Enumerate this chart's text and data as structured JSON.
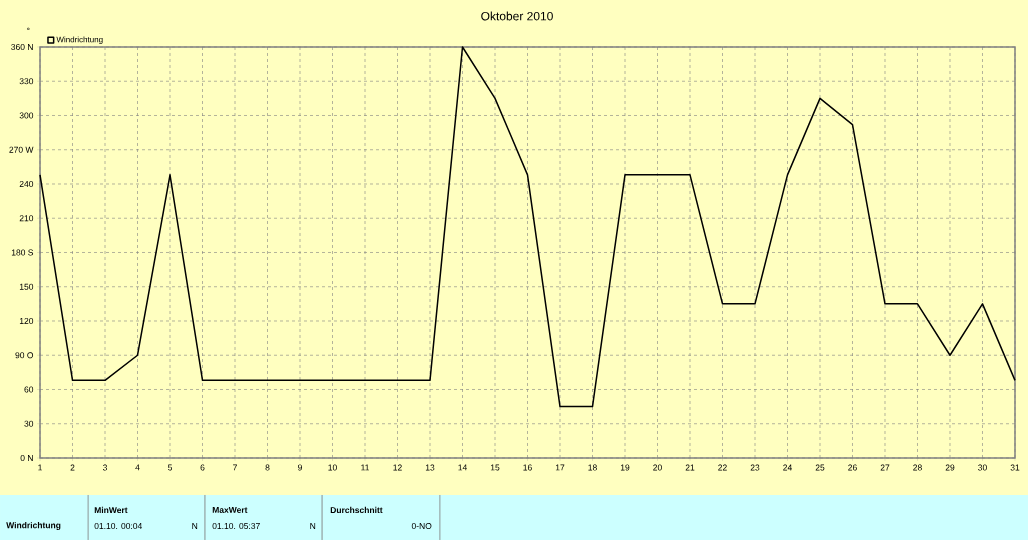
{
  "chart_data": {
    "type": "line",
    "title": "Oktober 2010",
    "ylabel": "°",
    "x": [
      1,
      2,
      3,
      4,
      5,
      6,
      7,
      8,
      9,
      10,
      11,
      12,
      13,
      14,
      15,
      16,
      17,
      18,
      19,
      20,
      21,
      22,
      23,
      24,
      25,
      26,
      27,
      28,
      29,
      30,
      31
    ],
    "series": [
      {
        "name": "Windrichtung",
        "color": "#000000",
        "values": [
          248,
          68,
          68,
          90,
          248,
          68,
          68,
          68,
          68,
          68,
          68,
          68,
          68,
          360,
          315,
          248,
          45,
          45,
          248,
          248,
          248,
          135,
          135,
          248,
          315,
          292,
          135,
          135,
          90,
          135,
          68
        ]
      }
    ],
    "xlim": [
      1,
      31
    ],
    "xticks": [
      1,
      2,
      3,
      4,
      5,
      6,
      7,
      8,
      9,
      10,
      11,
      12,
      13,
      14,
      15,
      16,
      17,
      18,
      19,
      20,
      21,
      22,
      23,
      24,
      25,
      26,
      27,
      28,
      29,
      30,
      31
    ],
    "ylim": [
      0,
      360
    ],
    "yticks": [
      {
        "value": 0,
        "label": "0 N"
      },
      30,
      60,
      {
        "value": 90,
        "label": "90 O"
      },
      120,
      150,
      {
        "value": 180,
        "label": "180 S"
      },
      210,
      240,
      {
        "value": 270,
        "label": "270 W"
      },
      300,
      330,
      {
        "value": 360,
        "label": "360 N"
      }
    ],
    "grid": true,
    "legend": "top left",
    "marker": "none",
    "line_style": "solid",
    "annotations": [
      "Windrichtung",
      "MinWert",
      "01.10.  00:04",
      "N",
      "MaxWert",
      "01.10.  05:37",
      "N",
      "Durchschnitt",
      "0-NO"
    ]
  }
}
